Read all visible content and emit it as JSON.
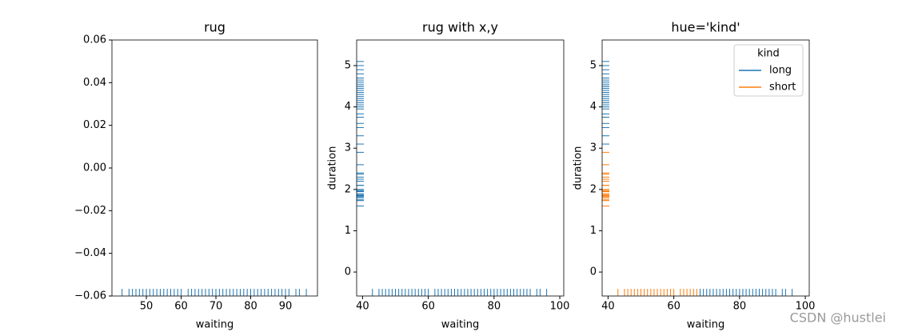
{
  "chart_data": [
    {
      "type": "rug",
      "title": "rug",
      "xlabel": "waiting",
      "color": "#1f77b4",
      "xlim": [
        40.1,
        99.2
      ],
      "xticks": [
        50,
        60,
        70,
        80,
        90
      ],
      "ylim": [
        -0.06,
        0.06
      ],
      "yticks": [
        {
          "value": -0.06,
          "label": "−0.06"
        },
        {
          "value": -0.04,
          "label": "−0.04"
        },
        {
          "value": -0.02,
          "label": "−0.02"
        },
        {
          "value": 0,
          "label": "0.00"
        },
        0.02,
        0.04,
        0.06
      ],
      "x": [
        43,
        45,
        46,
        47,
        48,
        49,
        50,
        51,
        52,
        53,
        54,
        55,
        56,
        57,
        58,
        59,
        60,
        62,
        63,
        64,
        65,
        66,
        67,
        68,
        69,
        70,
        71,
        72,
        73,
        74,
        75,
        76,
        77,
        78,
        79,
        80,
        81,
        82,
        83,
        84,
        85,
        86,
        87,
        88,
        89,
        90,
        91,
        93,
        94,
        96
      ]
    },
    {
      "type": "rug",
      "title": "rug with x,y",
      "xlabel": "waiting",
      "ylabel": "duration",
      "color": "#1f77b4",
      "xlim": [
        38.2,
        101.2
      ],
      "xticks": [
        40,
        60,
        80,
        100
      ],
      "ylim": [
        -0.58,
        5.62
      ],
      "yticks": [
        0,
        1,
        2,
        3,
        4,
        5
      ],
      "x": [
        43,
        45,
        46,
        47,
        48,
        49,
        50,
        51,
        52,
        53,
        54,
        55,
        56,
        57,
        58,
        59,
        60,
        62,
        63,
        64,
        65,
        66,
        67,
        68,
        69,
        70,
        71,
        72,
        73,
        74,
        75,
        76,
        77,
        78,
        79,
        80,
        81,
        82,
        83,
        84,
        85,
        86,
        87,
        88,
        89,
        90,
        91,
        93,
        94,
        96
      ],
      "y": [
        1.75,
        1.8,
        1.95,
        1.87,
        2.0,
        1.6,
        1.83,
        1.73,
        2.1,
        1.9,
        1.97,
        2.2,
        1.8,
        2.3,
        2.0,
        1.95,
        2.4,
        2.25,
        1.85,
        2.6,
        2.1,
        2.9,
        2.37,
        3.3,
        3.83,
        3.6,
        4.0,
        3.5,
        4.2,
        3.95,
        4.5,
        4.1,
        4.35,
        4.6,
        3.75,
        4.05,
        4.5,
        4.25,
        4.7,
        4.4,
        4.8,
        4.15,
        4.9,
        4.55,
        3.1,
        5.0,
        4.65,
        5.1,
        4.3,
        4.45
      ]
    },
    {
      "type": "rug",
      "title": "hue='kind'",
      "xlabel": "waiting",
      "ylabel": "duration",
      "xlim": [
        38.2,
        101.2
      ],
      "xticks": [
        40,
        60,
        80,
        100
      ],
      "ylim": [
        -0.58,
        5.62
      ],
      "yticks": [
        0,
        1,
        2,
        3,
        4,
        5
      ],
      "legend": "upper right",
      "legend_title": "kind",
      "series": [
        {
          "name": "long",
          "color": "#1f77b4",
          "x": [
            68,
            69,
            70,
            71,
            72,
            73,
            74,
            75,
            76,
            77,
            78,
            79,
            80,
            81,
            82,
            83,
            84,
            85,
            86,
            87,
            88,
            89,
            90,
            91,
            93,
            94,
            96
          ],
          "y": [
            3.3,
            3.83,
            3.6,
            4.0,
            3.5,
            4.2,
            3.95,
            4.5,
            4.1,
            4.35,
            4.6,
            3.75,
            4.05,
            4.5,
            4.25,
            4.7,
            4.4,
            4.8,
            4.15,
            4.9,
            4.55,
            3.1,
            5.0,
            4.65,
            5.1,
            4.3,
            4.45
          ]
        },
        {
          "name": "short",
          "color": "#ff7f0e",
          "x": [
            43,
            45,
            46,
            47,
            48,
            49,
            50,
            51,
            52,
            53,
            54,
            55,
            56,
            57,
            58,
            59,
            60,
            62,
            63,
            64,
            65,
            66,
            67
          ],
          "y": [
            1.75,
            1.8,
            1.95,
            1.87,
            2.0,
            1.6,
            1.83,
            1.73,
            2.1,
            1.9,
            1.97,
            2.2,
            1.8,
            2.3,
            2.0,
            1.95,
            2.4,
            2.25,
            1.85,
            2.6,
            2.1,
            2.9,
            2.37
          ]
        }
      ]
    }
  ],
  "watermark": "CSDN @hustlei"
}
